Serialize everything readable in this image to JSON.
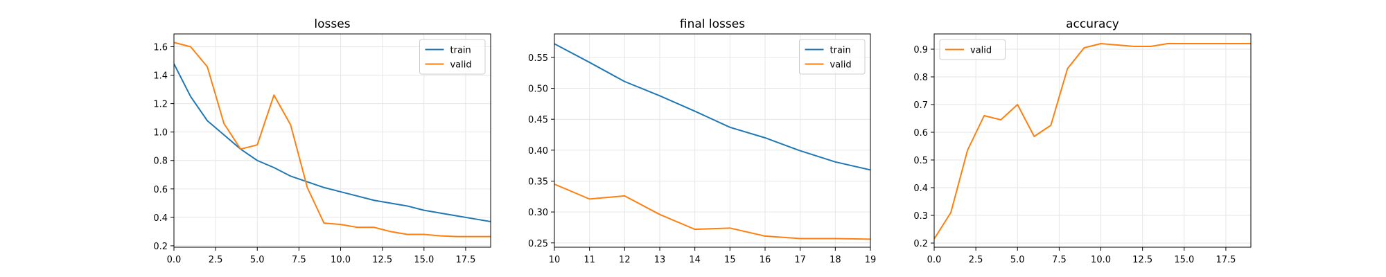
{
  "colors": {
    "train": "#1f77b4",
    "valid": "#ff7f0e",
    "grid": "#e6e6e6",
    "axis": "#000000"
  },
  "chart_data": [
    {
      "type": "line",
      "title": "losses",
      "xlabel": "",
      "ylabel": "",
      "xlim": [
        0,
        19
      ],
      "ylim": [
        0.19,
        1.69
      ],
      "xticks": [
        0.0,
        2.5,
        5.0,
        7.5,
        10.0,
        12.5,
        15.0,
        17.5
      ],
      "xtick_labels": [
        "0.0",
        "2.5",
        "5.0",
        "7.5",
        "10.0",
        "12.5",
        "15.0",
        "17.5"
      ],
      "yticks": [
        0.2,
        0.4,
        0.6,
        0.8,
        1.0,
        1.2,
        1.4,
        1.6
      ],
      "ytick_labels": [
        "0.2",
        "0.4",
        "0.6",
        "0.8",
        "1.0",
        "1.2",
        "1.4",
        "1.6"
      ],
      "grid": true,
      "legend": "top-right",
      "x": [
        0,
        1,
        2,
        3,
        4,
        5,
        6,
        7,
        8,
        9,
        10,
        11,
        12,
        13,
        14,
        15,
        16,
        17,
        18,
        19
      ],
      "series": [
        {
          "name": "train",
          "color": "#1f77b4",
          "values": [
            1.48,
            1.25,
            1.08,
            0.98,
            0.88,
            0.8,
            0.75,
            0.69,
            0.65,
            0.61,
            0.58,
            0.55,
            0.52,
            0.5,
            0.48,
            0.45,
            0.43,
            0.41,
            0.39,
            0.37
          ]
        },
        {
          "name": "valid",
          "color": "#ff7f0e",
          "values": [
            1.63,
            1.6,
            1.46,
            1.06,
            0.88,
            0.91,
            1.26,
            1.05,
            0.61,
            0.36,
            0.35,
            0.33,
            0.33,
            0.3,
            0.28,
            0.28,
            0.27,
            0.265,
            0.265,
            0.265
          ]
        }
      ]
    },
    {
      "type": "line",
      "title": "final losses",
      "xlabel": "",
      "ylabel": "",
      "xlim": [
        10,
        19
      ],
      "ylim": [
        0.243,
        0.588
      ],
      "xticks": [
        10,
        11,
        12,
        13,
        14,
        15,
        16,
        17,
        18,
        19
      ],
      "xtick_labels": [
        "10",
        "11",
        "12",
        "13",
        "14",
        "15",
        "16",
        "17",
        "18",
        "19"
      ],
      "yticks": [
        0.25,
        0.3,
        0.35,
        0.4,
        0.45,
        0.5,
        0.55
      ],
      "ytick_labels": [
        "0.25",
        "0.30",
        "0.35",
        "0.40",
        "0.45",
        "0.50",
        "0.55"
      ],
      "grid": true,
      "legend": "top-right",
      "x": [
        10,
        11,
        12,
        13,
        14,
        15,
        16,
        17,
        18,
        19
      ],
      "series": [
        {
          "name": "train",
          "color": "#1f77b4",
          "values": [
            0.572,
            0.542,
            0.511,
            0.488,
            0.463,
            0.437,
            0.42,
            0.399,
            0.381,
            0.368
          ]
        },
        {
          "name": "valid",
          "color": "#ff7f0e",
          "values": [
            0.345,
            0.321,
            0.326,
            0.296,
            0.272,
            0.274,
            0.261,
            0.257,
            0.257,
            0.256
          ]
        }
      ]
    },
    {
      "type": "line",
      "title": "accuracy",
      "xlabel": "",
      "ylabel": "",
      "xlim": [
        0,
        19
      ],
      "ylim": [
        0.185,
        0.955
      ],
      "xticks": [
        0.0,
        2.5,
        5.0,
        7.5,
        10.0,
        12.5,
        15.0,
        17.5
      ],
      "xtick_labels": [
        "0.0",
        "2.5",
        "5.0",
        "7.5",
        "10.0",
        "12.5",
        "15.0",
        "17.5"
      ],
      "yticks": [
        0.2,
        0.3,
        0.4,
        0.5,
        0.6,
        0.7,
        0.8,
        0.9
      ],
      "ytick_labels": [
        "0.2",
        "0.3",
        "0.4",
        "0.5",
        "0.6",
        "0.7",
        "0.8",
        "0.9"
      ],
      "grid": true,
      "legend": "top-left",
      "x": [
        0,
        1,
        2,
        3,
        4,
        5,
        6,
        7,
        8,
        9,
        10,
        11,
        12,
        13,
        14,
        15,
        16,
        17,
        18,
        19
      ],
      "series": [
        {
          "name": "valid",
          "color": "#ff7f0e",
          "values": [
            0.215,
            0.31,
            0.535,
            0.66,
            0.645,
            0.7,
            0.585,
            0.625,
            0.83,
            0.905,
            0.92,
            0.915,
            0.91,
            0.91,
            0.92,
            0.92,
            0.92,
            0.92,
            0.92,
            0.92
          ]
        }
      ]
    }
  ]
}
